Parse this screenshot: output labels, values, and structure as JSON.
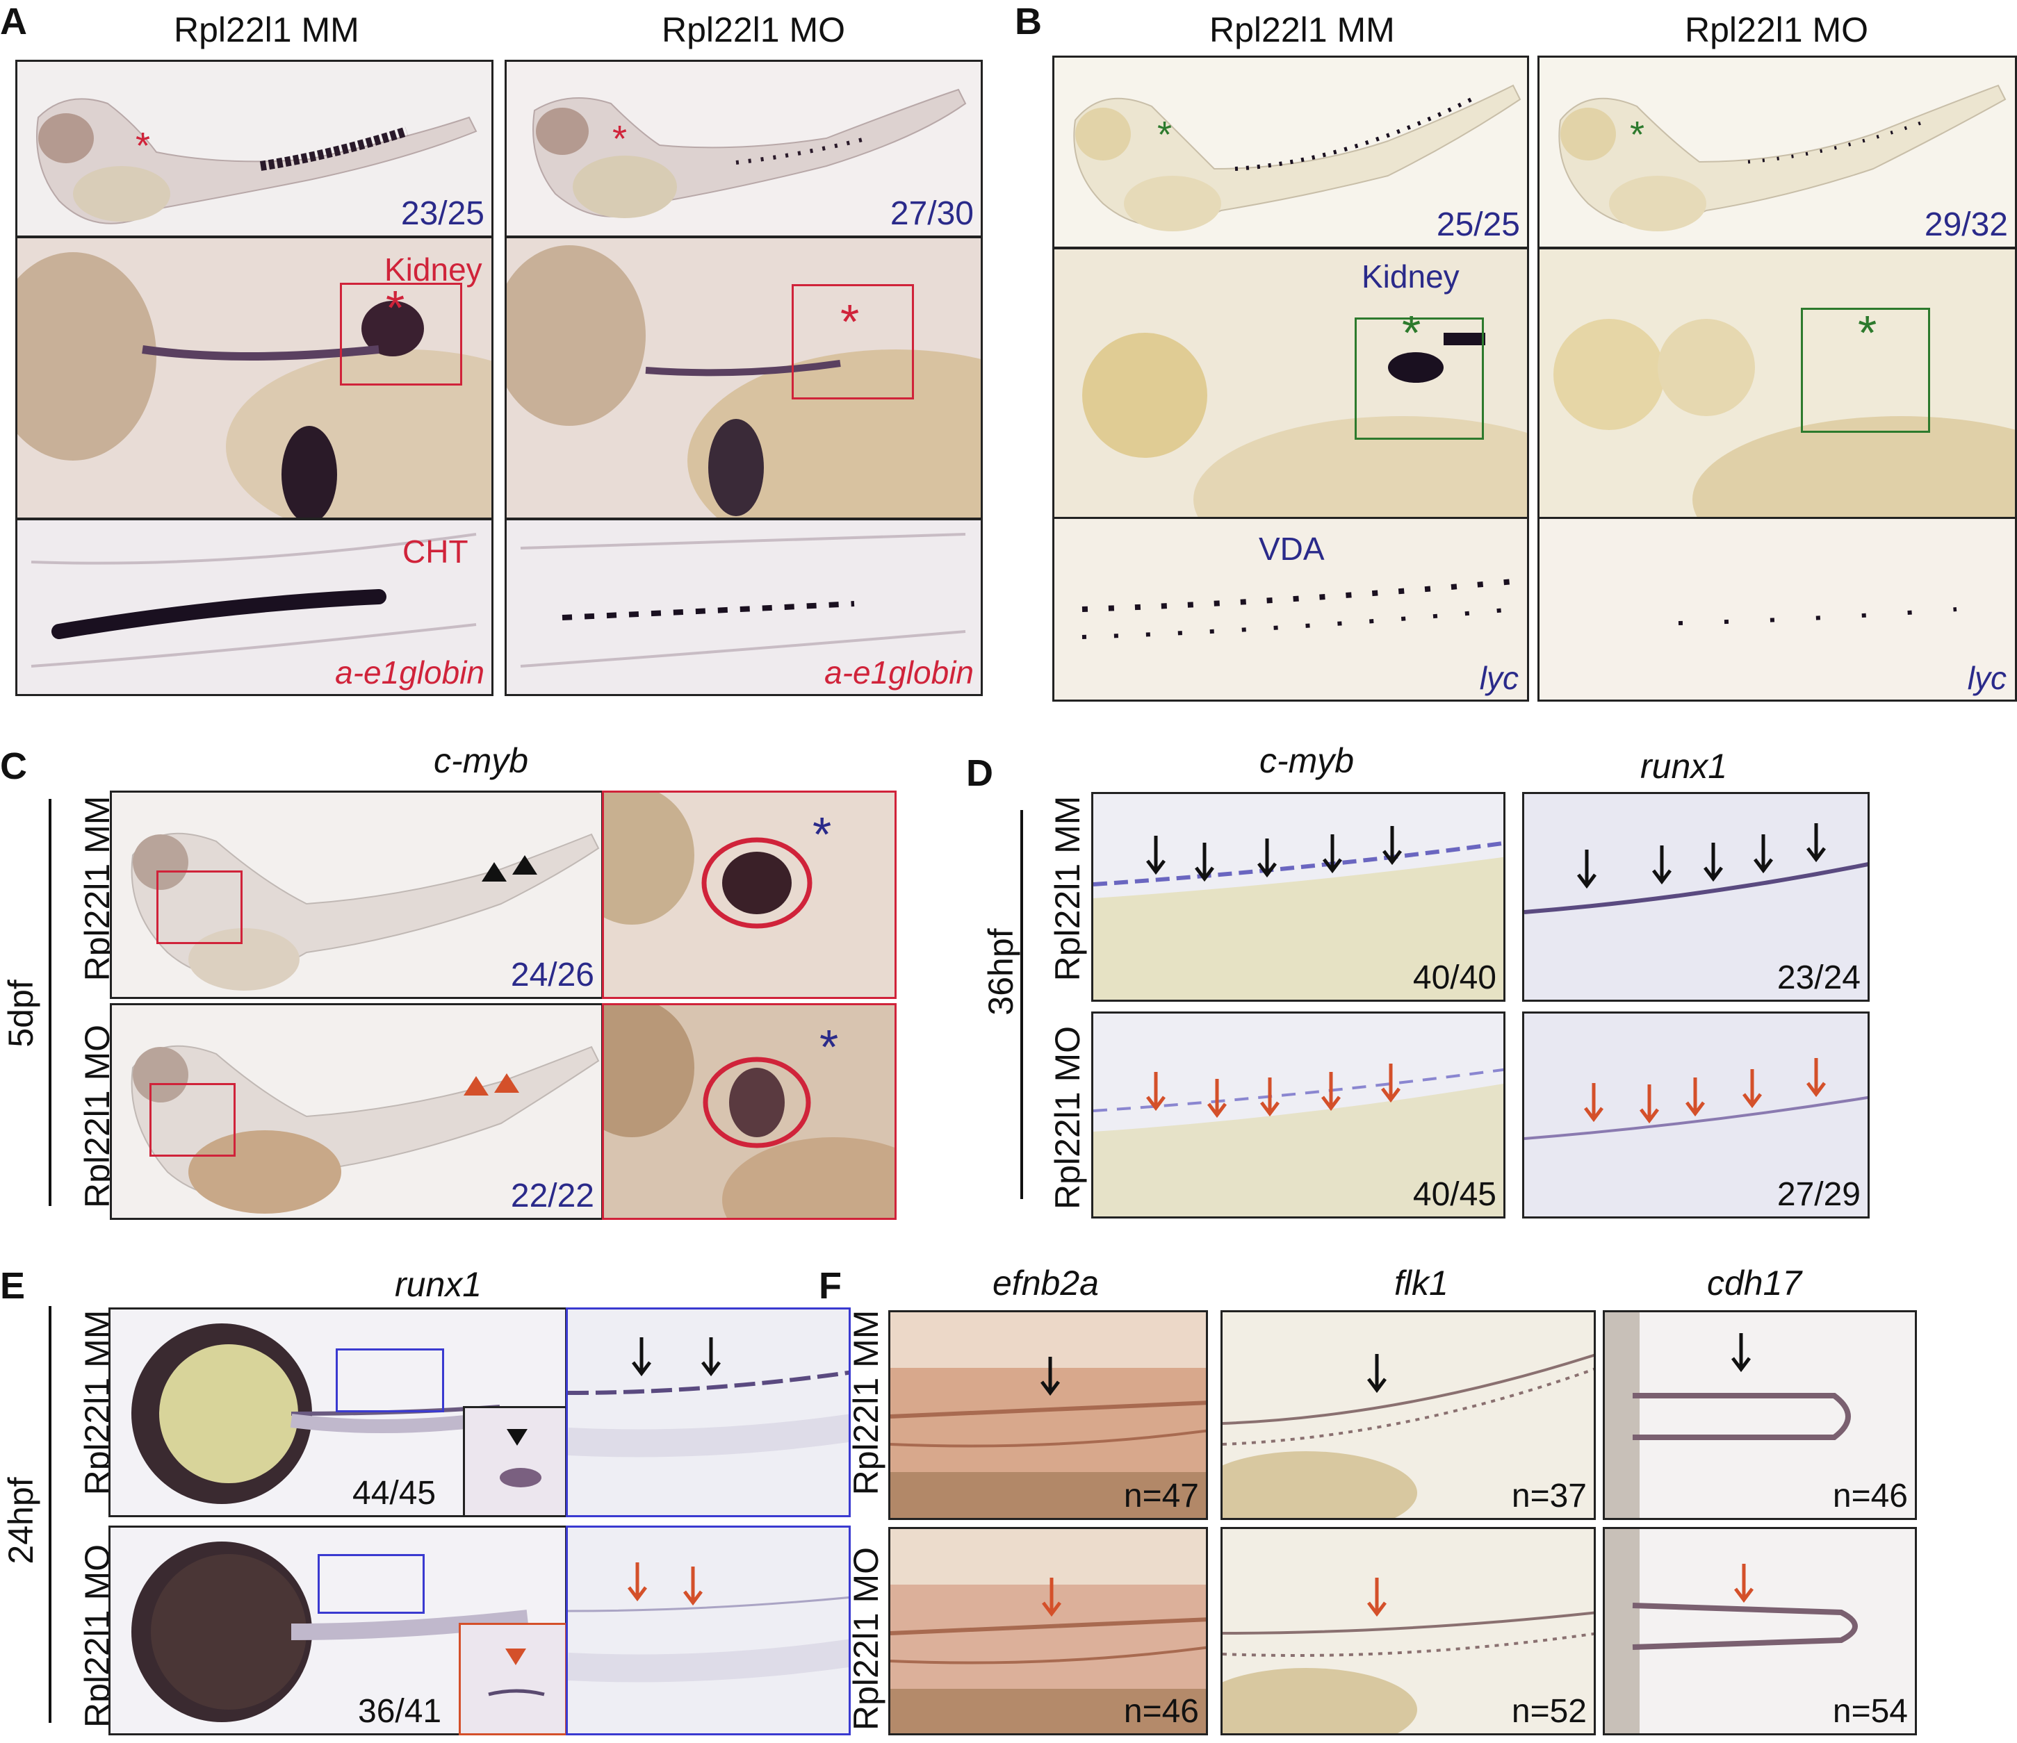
{
  "panels": {
    "A": {
      "letter": "A",
      "col_mm": "Rpl22l1 MM",
      "col_mo": "Rpl22l1 MO",
      "frac_mm": "23/25",
      "frac_mo": "27/30",
      "kidney": "Kidney",
      "cht": "CHT",
      "gene_mm": "a-e1globin",
      "gene_mo": "a-e1globin",
      "star": "*"
    },
    "B": {
      "letter": "B",
      "col_mm": "Rpl22l1 MM",
      "col_mo": "Rpl22l1 MO",
      "frac_mm": "25/25",
      "frac_mo": "29/32",
      "kidney": "Kidney",
      "vda": "VDA",
      "gene_mm": "lyc",
      "gene_mo": "lyc",
      "star": "*"
    },
    "C": {
      "letter": "C",
      "gene": "c-myb",
      "stage": "5dpf",
      "row_mm": "Rpl22l1 MM",
      "row_mo": "Rpl22l1 MO",
      "frac_mm": "24/26",
      "frac_mo": "22/22",
      "star": "*"
    },
    "D": {
      "letter": "D",
      "gene1": "c-myb",
      "gene2": "runx1",
      "stage": "36hpf",
      "row_mm": "Rpl22l1 MM",
      "row_mo": "Rpl22l1 MO",
      "frac_mm1": "40/40",
      "frac_mm2": "23/24",
      "frac_mo1": "40/45",
      "frac_mo2": "27/29"
    },
    "E": {
      "letter": "E",
      "gene": "runx1",
      "stage": "24hpf",
      "row_mm": "Rpl22l1 MM",
      "row_mo": "Rpl22l1 MO",
      "frac_mm": "44/45",
      "frac_mo": "36/41"
    },
    "F": {
      "letter": "F",
      "gene1": "efnb2a",
      "gene2": "flk1",
      "gene3": "cdh17",
      "row_mm": "Rpl22l1 MM",
      "row_mo": "Rpl22l1 MO",
      "n_mm1": "n=47",
      "n_mm2": "n=37",
      "n_mm3": "n=46",
      "n_mo1": "n=46",
      "n_mo2": "n=52",
      "n_mo3": "n=54"
    }
  },
  "colors": {
    "red": "#d0233a",
    "blue": "#2a2a8a",
    "green": "#2d7a2d",
    "orange": "#d4502a",
    "arrow_blue": "#3535b0",
    "black": "#111111"
  }
}
